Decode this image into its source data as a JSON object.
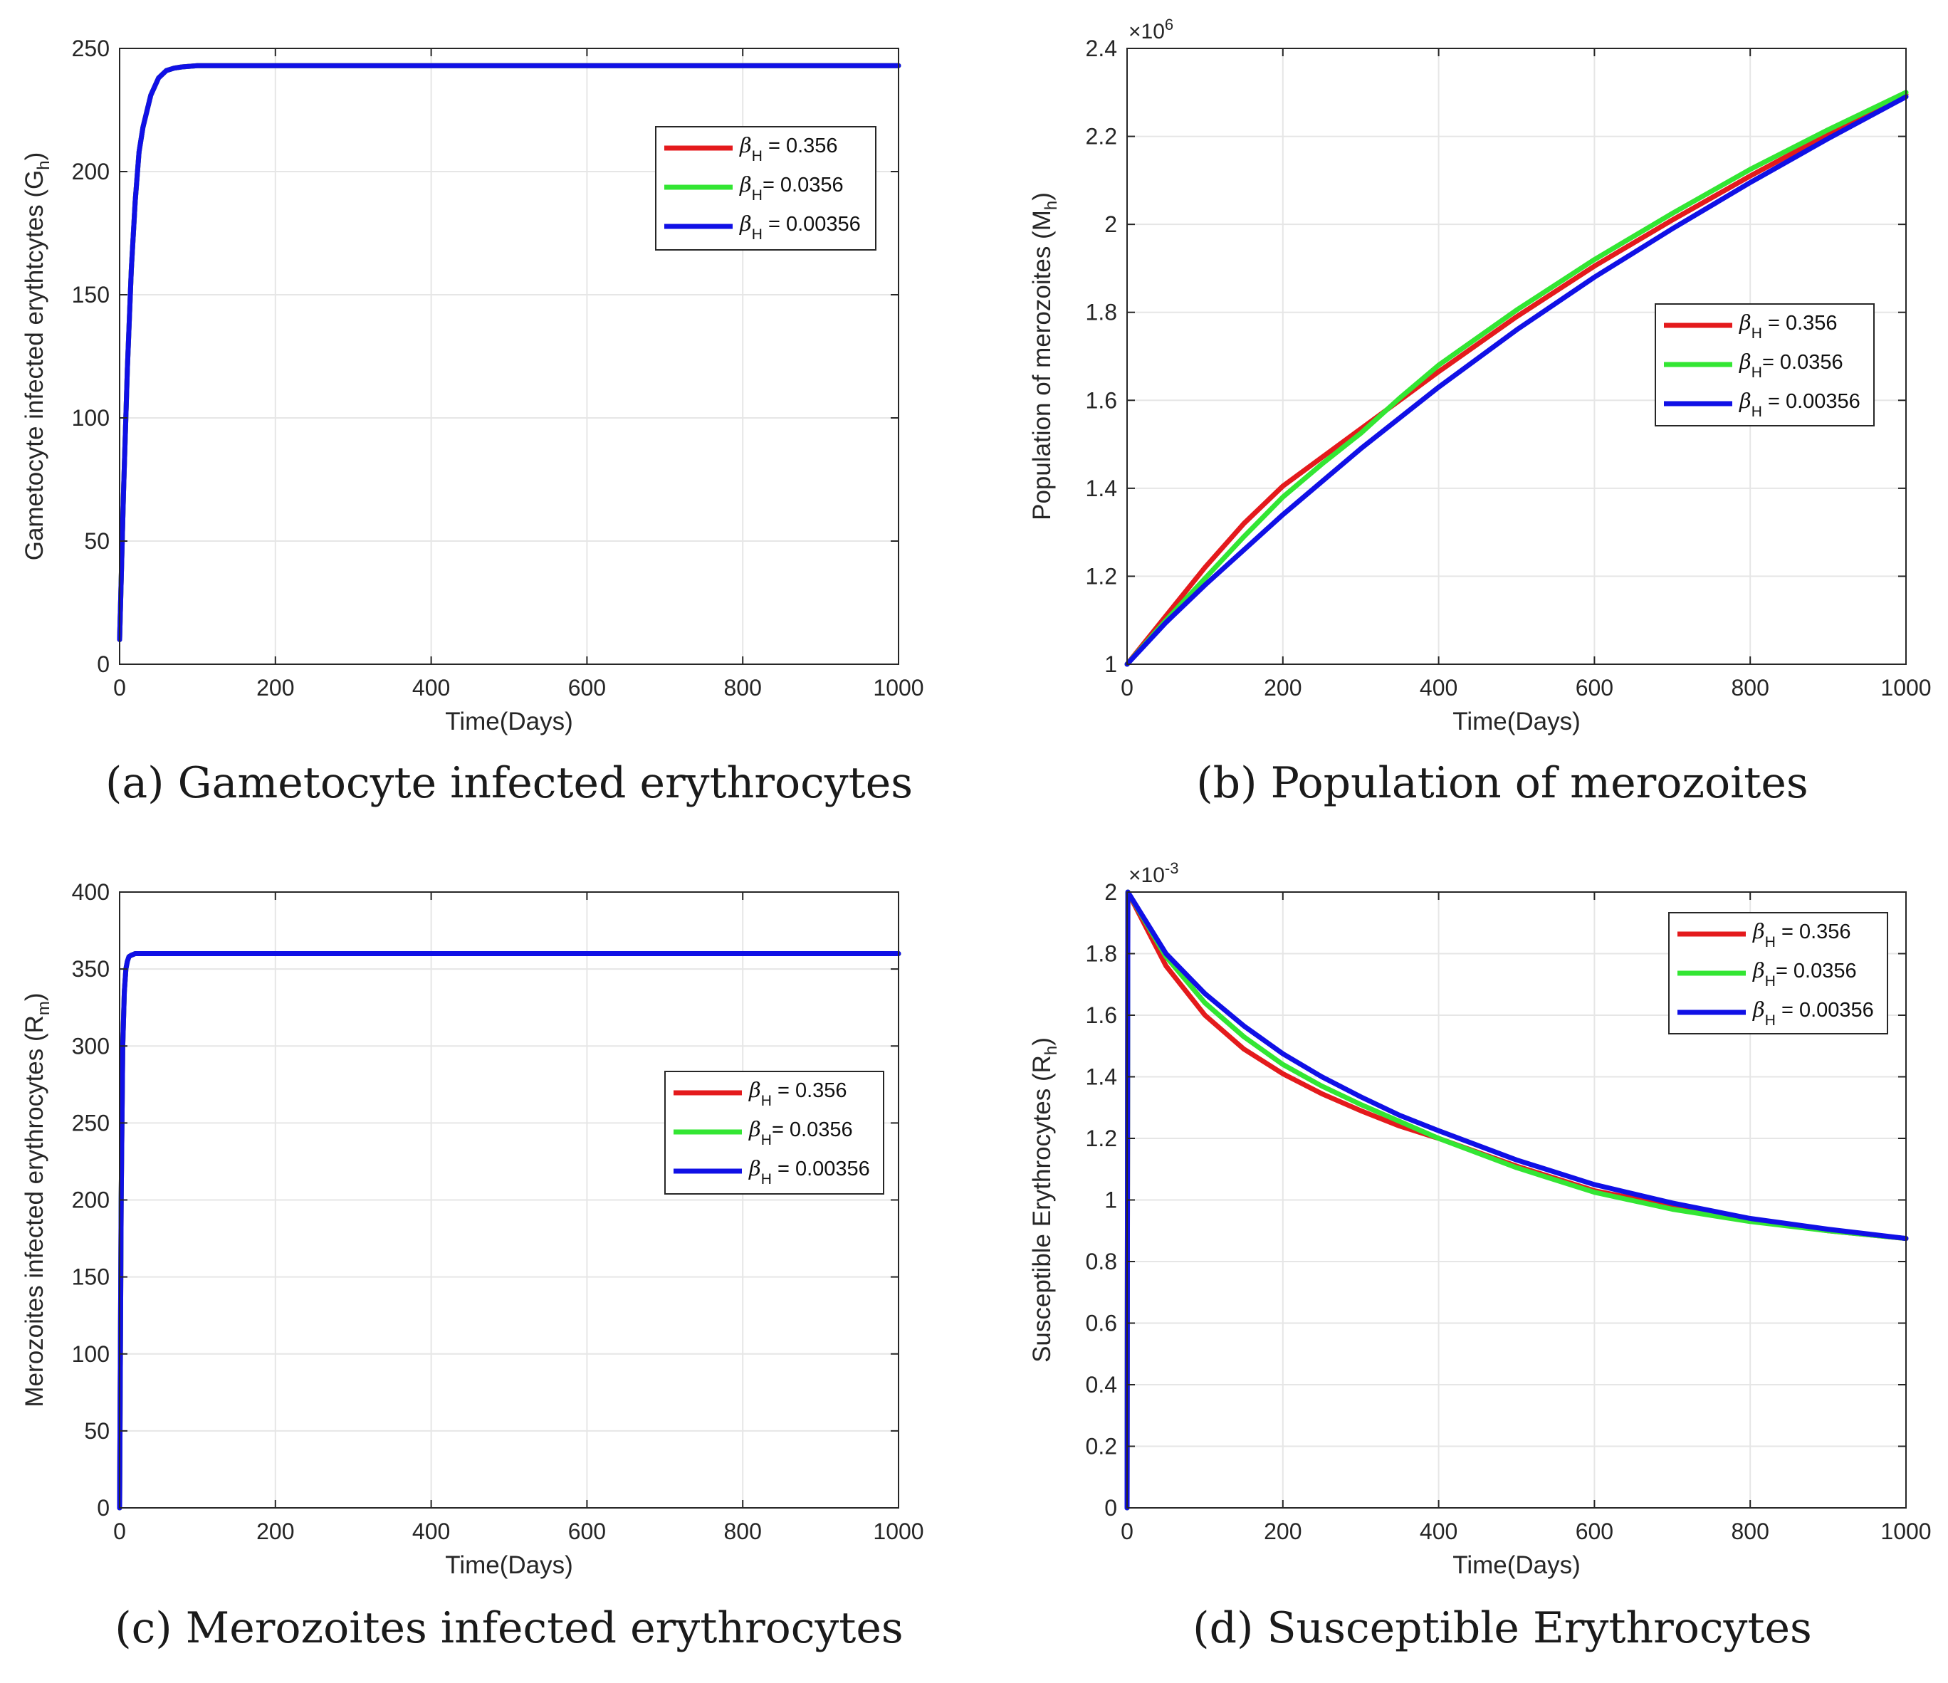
{
  "chart_data": [
    {
      "id": "a",
      "type": "line",
      "caption": "(a) Gametocyte infected erythrocytes",
      "ylabel": "Gametocyte infected erythtcytes (G",
      "ylabel_sub": "h",
      "ylabel_close": ")",
      "xlabel": "Time(Days)",
      "xlim": [
        0,
        1000
      ],
      "ylim": [
        0,
        250
      ],
      "xticks": [
        0,
        200,
        400,
        600,
        800,
        1000
      ],
      "xtick_labels": [
        "0",
        "200",
        "400",
        "600",
        "800",
        "1000"
      ],
      "yticks": [
        0,
        50,
        100,
        150,
        200,
        250
      ],
      "ytick_labels": [
        "0",
        "50",
        "100",
        "150",
        "200",
        "250"
      ],
      "legend_position": "top-right",
      "legend": [
        {
          "prefix": "β",
          "sub": "H",
          "text": " = 0.356",
          "color": "#e41a1c"
        },
        {
          "prefix": "β",
          "sub": "H",
          "text": "= 0.0356",
          "color": "#33e633"
        },
        {
          "prefix": "β",
          "sub": "H",
          "text": " = 0.00356",
          "color": "#1010e6"
        }
      ],
      "series": [
        {
          "name": "βH = 0.356",
          "color": "#e41a1c",
          "x": [
            0,
            5,
            10,
            15,
            20,
            25,
            30,
            40,
            50,
            60,
            70,
            80,
            100,
            150,
            200,
            400,
            600,
            800,
            1000
          ],
          "y": [
            10,
            70,
            120,
            160,
            188,
            208,
            218,
            231,
            238,
            241,
            242,
            242.5,
            243,
            243,
            243,
            243,
            243,
            243,
            243
          ]
        },
        {
          "name": "βH = 0.0356",
          "color": "#33e633",
          "x": [
            0,
            5,
            10,
            15,
            20,
            25,
            30,
            40,
            50,
            60,
            70,
            80,
            100,
            150,
            200,
            400,
            600,
            800,
            1000
          ],
          "y": [
            10,
            70,
            120,
            160,
            188,
            208,
            218,
            231,
            238,
            241,
            242,
            242.5,
            243,
            243,
            243,
            243,
            243,
            243,
            243
          ]
        },
        {
          "name": "βH = 0.00356",
          "color": "#1010e6",
          "x": [
            0,
            5,
            10,
            15,
            20,
            25,
            30,
            40,
            50,
            60,
            70,
            80,
            100,
            150,
            200,
            400,
            600,
            800,
            1000
          ],
          "y": [
            10,
            70,
            120,
            160,
            188,
            208,
            218,
            231,
            238,
            241,
            242,
            242.5,
            243,
            243,
            243,
            243,
            243,
            243,
            243
          ]
        }
      ]
    },
    {
      "id": "b",
      "type": "line",
      "caption": "(b) Population of merozoites",
      "ylabel": "Population of merozoites   (M",
      "ylabel_sub": "h",
      "ylabel_close": ")",
      "xlabel": "Time(Days)",
      "xlim": [
        0,
        1000
      ],
      "ylim": [
        1,
        2.4
      ],
      "exponent_base": "×10",
      "exponent_power": "6",
      "xticks": [
        0,
        200,
        400,
        600,
        800,
        1000
      ],
      "xtick_labels": [
        "0",
        "200",
        "400",
        "600",
        "800",
        "1000"
      ],
      "yticks": [
        1,
        1.2,
        1.4,
        1.6,
        1.8,
        2,
        2.2,
        2.4
      ],
      "ytick_labels": [
        "1",
        "1.2",
        "1.4",
        "1.6",
        "1.8",
        "2",
        "2.2",
        "2.4"
      ],
      "legend_position": "right",
      "legend": [
        {
          "prefix": "β",
          "sub": "H",
          "text": " = 0.356",
          "color": "#e41a1c"
        },
        {
          "prefix": "β",
          "sub": "H",
          "text": "= 0.0356",
          "color": "#33e633"
        },
        {
          "prefix": "β",
          "sub": "H",
          "text": " = 0.00356",
          "color": "#1010e6"
        }
      ],
      "series": [
        {
          "name": "βH = 0.356",
          "color": "#e41a1c",
          "x": [
            0,
            50,
            100,
            150,
            200,
            250,
            300,
            350,
            400,
            500,
            600,
            700,
            800,
            900,
            1000
          ],
          "y": [
            1.0,
            1.11,
            1.22,
            1.32,
            1.405,
            1.47,
            1.535,
            1.6,
            1.665,
            1.79,
            1.905,
            2.01,
            2.11,
            2.205,
            2.295
          ]
        },
        {
          "name": "βH = 0.0356",
          "color": "#33e633",
          "x": [
            0,
            50,
            100,
            150,
            200,
            250,
            300,
            350,
            400,
            500,
            600,
            700,
            800,
            900,
            1000
          ],
          "y": [
            1.0,
            1.1,
            1.195,
            1.29,
            1.38,
            1.455,
            1.525,
            1.605,
            1.68,
            1.805,
            1.92,
            2.025,
            2.125,
            2.215,
            2.3
          ]
        },
        {
          "name": "βH = 0.00356",
          "color": "#1010e6",
          "x": [
            0,
            50,
            100,
            150,
            200,
            250,
            300,
            350,
            400,
            500,
            600,
            700,
            800,
            900,
            1000
          ],
          "y": [
            1.0,
            1.095,
            1.18,
            1.26,
            1.34,
            1.415,
            1.49,
            1.56,
            1.63,
            1.76,
            1.88,
            1.99,
            2.095,
            2.195,
            2.29
          ]
        }
      ]
    },
    {
      "id": "c",
      "type": "line",
      "caption": "(c) Merozoites infected erythrocytes",
      "ylabel": "Merozoites  infected erythrocytes (R",
      "ylabel_sub": "m",
      "ylabel_close": ")",
      "xlabel": "Time(Days)",
      "xlim": [
        0,
        1000
      ],
      "ylim": [
        0,
        400
      ],
      "xticks": [
        0,
        200,
        400,
        600,
        800,
        1000
      ],
      "xtick_labels": [
        "0",
        "200",
        "400",
        "600",
        "800",
        "1000"
      ],
      "yticks": [
        0,
        50,
        100,
        150,
        200,
        250,
        300,
        350,
        400
      ],
      "ytick_labels": [
        "0",
        "50",
        "100",
        "150",
        "200",
        "250",
        "300",
        "350",
        "400"
      ],
      "legend_position": "right",
      "legend": [
        {
          "prefix": "β",
          "sub": "H",
          "text": " = 0.356",
          "color": "#e41a1c"
        },
        {
          "prefix": "β",
          "sub": "H",
          "text": "= 0.0356",
          "color": "#33e633"
        },
        {
          "prefix": "β",
          "sub": "H",
          "text": " = 0.00356",
          "color": "#1010e6"
        }
      ],
      "series": [
        {
          "name": "βH = 0.356",
          "color": "#e41a1c",
          "x": [
            0,
            2,
            4,
            6,
            8,
            10,
            12,
            15,
            20,
            1000
          ],
          "y": [
            0,
            200,
            300,
            335,
            350,
            355,
            358,
            359,
            360,
            360
          ]
        },
        {
          "name": "βH = 0.0356",
          "color": "#33e633",
          "x": [
            0,
            2,
            4,
            6,
            8,
            10,
            12,
            15,
            20,
            1000
          ],
          "y": [
            0,
            200,
            300,
            335,
            350,
            355,
            358,
            359,
            360,
            360
          ]
        },
        {
          "name": "βH = 0.00356",
          "color": "#1010e6",
          "x": [
            0,
            2,
            4,
            6,
            8,
            10,
            12,
            15,
            20,
            1000
          ],
          "y": [
            0,
            200,
            300,
            335,
            350,
            355,
            358,
            359,
            360,
            360
          ]
        }
      ]
    },
    {
      "id": "d",
      "type": "line",
      "caption": "(d) Susceptible Erythrocytes",
      "ylabel": "Susceptible Erythrocytes (R",
      "ylabel_sub": "h",
      "ylabel_close": ")",
      "xlabel": "Time(Days)",
      "xlim": [
        0,
        1000
      ],
      "ylim": [
        0,
        2
      ],
      "exponent_base": "×10",
      "exponent_power": "-3",
      "xticks": [
        0,
        200,
        400,
        600,
        800,
        1000
      ],
      "xtick_labels": [
        "0",
        "200",
        "400",
        "600",
        "800",
        "1000"
      ],
      "yticks": [
        0,
        0.2,
        0.4,
        0.6,
        0.8,
        1,
        1.2,
        1.4,
        1.6,
        1.8,
        2
      ],
      "ytick_labels": [
        "0",
        "0.2",
        "0.4",
        "0.6",
        "0.8",
        "1",
        "1.2",
        "1.4",
        "1.6",
        "1.8",
        "2"
      ],
      "legend_position": "top-right",
      "legend": [
        {
          "prefix": "β",
          "sub": "H",
          "text": " = 0.356",
          "color": "#e41a1c"
        },
        {
          "prefix": "β",
          "sub": "H",
          "text": "= 0.0356",
          "color": "#33e633"
        },
        {
          "prefix": "β",
          "sub": "H",
          "text": " = 0.00356",
          "color": "#1010e6"
        }
      ],
      "series": [
        {
          "name": "βH = 0.356",
          "color": "#e41a1c",
          "x": [
            0,
            1,
            50,
            100,
            150,
            200,
            250,
            300,
            350,
            400,
            500,
            600,
            700,
            800,
            900,
            1000
          ],
          "y": [
            0,
            2.0,
            1.76,
            1.6,
            1.49,
            1.41,
            1.345,
            1.29,
            1.24,
            1.2,
            1.11,
            1.03,
            0.98,
            0.935,
            0.9,
            0.875
          ]
        },
        {
          "name": "βH = 0.0356",
          "color": "#33e633",
          "x": [
            0,
            1,
            50,
            100,
            150,
            200,
            250,
            300,
            350,
            400,
            500,
            600,
            700,
            800,
            900,
            1000
          ],
          "y": [
            0,
            2.0,
            1.79,
            1.64,
            1.53,
            1.44,
            1.37,
            1.31,
            1.255,
            1.2,
            1.105,
            1.025,
            0.97,
            0.93,
            0.9,
            0.875
          ]
        },
        {
          "name": "βH = 0.00356",
          "color": "#1010e6",
          "x": [
            0,
            1,
            50,
            100,
            150,
            200,
            250,
            300,
            350,
            400,
            500,
            600,
            700,
            800,
            900,
            1000
          ],
          "y": [
            0,
            2.0,
            1.8,
            1.67,
            1.565,
            1.475,
            1.4,
            1.335,
            1.275,
            1.225,
            1.13,
            1.05,
            0.99,
            0.94,
            0.905,
            0.875
          ]
        }
      ]
    }
  ]
}
